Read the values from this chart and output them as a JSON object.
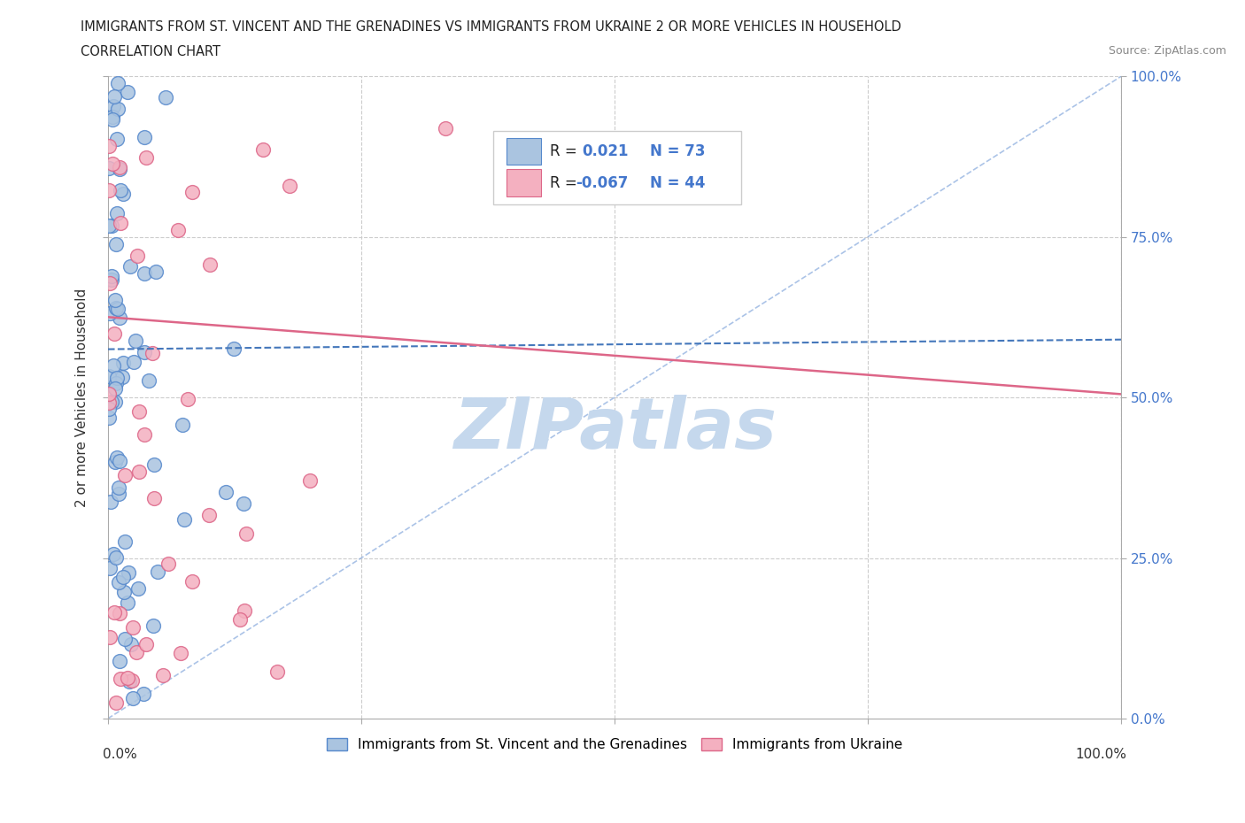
{
  "title_line1": "IMMIGRANTS FROM ST. VINCENT AND THE GRENADINES VS IMMIGRANTS FROM UKRAINE 2 OR MORE VEHICLES IN HOUSEHOLD",
  "title_line2": "CORRELATION CHART",
  "source_text": "Source: ZipAtlas.com",
  "ylabel": "2 or more Vehicles in Household",
  "xmin": 0.0,
  "xmax": 1.0,
  "ymin": 0.0,
  "ymax": 1.0,
  "xtick_values": [
    0.0,
    0.25,
    0.5,
    0.75,
    1.0
  ],
  "ytick_values": [
    0.0,
    0.25,
    0.5,
    0.75,
    1.0
  ],
  "blue_color": "#aac4e0",
  "blue_edge_color": "#5588cc",
  "pink_color": "#f4b0c0",
  "pink_edge_color": "#dd6688",
  "blue_line_color": "#4477bb",
  "pink_line_color": "#dd6688",
  "diag_line_color": "#88aadd",
  "right_label_color": "#4477cc",
  "R_blue": 0.021,
  "N_blue": 73,
  "R_pink": -0.067,
  "N_pink": 44,
  "legend_label_blue": "Immigrants from St. Vincent and the Grenadines",
  "legend_label_pink": "Immigrants from Ukraine",
  "watermark_text": "ZIPatlas",
  "watermark_color": "#c5d8ed",
  "blue_line_x0": 0.0,
  "blue_line_y0": 0.575,
  "blue_line_x1": 1.0,
  "blue_line_y1": 0.59,
  "pink_line_x0": 0.0,
  "pink_line_y0": 0.625,
  "pink_line_x1": 1.0,
  "pink_line_y1": 0.505
}
